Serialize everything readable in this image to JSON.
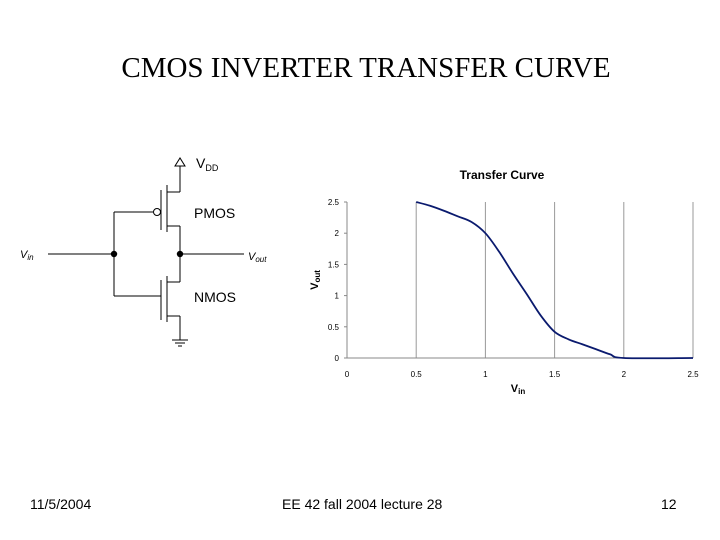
{
  "slide": {
    "title": "CMOS INVERTER TRANSFER CURVE",
    "footer_date": "11/5/2004",
    "footer_course": "EE 42 fall 2004 lecture 28",
    "page_number": "12"
  },
  "circuit": {
    "vdd_main": "V",
    "vdd_sub": "DD",
    "pmos_label": "PMOS",
    "nmos_label": "NMOS",
    "vin_main": "V",
    "vin_sub": "in",
    "vout_main": "V",
    "vout_sub": "out"
  },
  "chart_data": {
    "type": "line",
    "title": "Transfer Curve",
    "xlabel_main": "V",
    "xlabel_sub": "in",
    "ylabel_main": "V",
    "ylabel_sub": "out",
    "xlim": [
      0,
      2.5
    ],
    "ylim": [
      0,
      2.5
    ],
    "x_ticks": [
      "0",
      "0.5",
      "1",
      "1.5",
      "2",
      "2.5"
    ],
    "y_ticks": [
      "0",
      "0.5",
      "1",
      "1.5",
      "2",
      "2.5"
    ],
    "grid": "vertical",
    "series": [
      {
        "color": "#0a1a6e",
        "x": [
          0.5,
          0.6,
          0.7,
          0.8,
          0.9,
          1.0,
          1.1,
          1.2,
          1.3,
          1.4,
          1.5,
          1.6,
          1.7,
          1.8,
          1.9,
          2.0,
          2.5
        ],
        "y": [
          2.5,
          2.44,
          2.36,
          2.27,
          2.18,
          2.0,
          1.7,
          1.35,
          1.02,
          0.68,
          0.42,
          0.3,
          0.22,
          0.14,
          0.06,
          0.0,
          0.0
        ]
      }
    ]
  }
}
